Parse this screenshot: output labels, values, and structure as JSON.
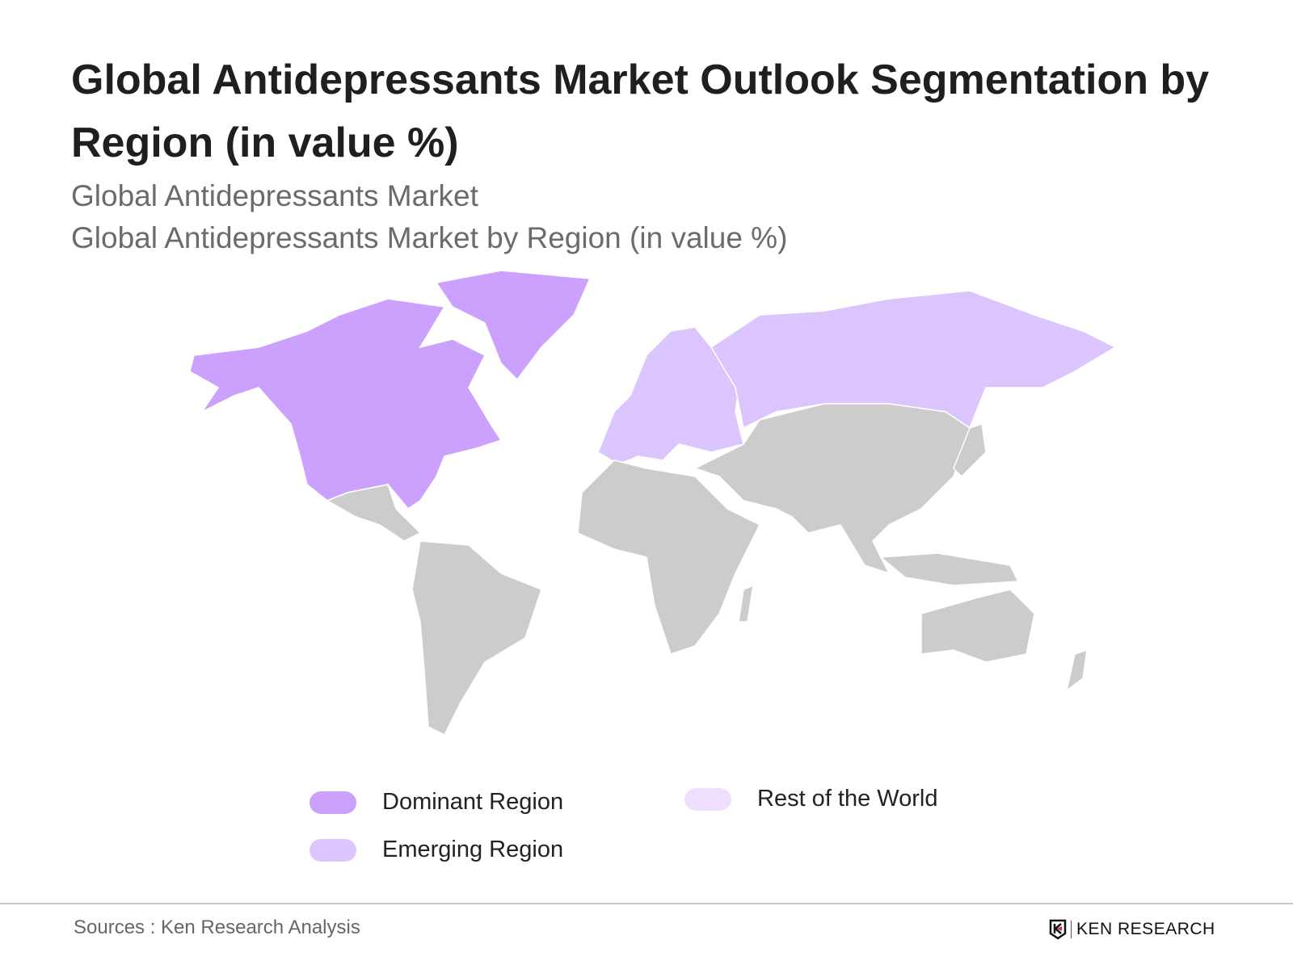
{
  "title": "Global Antidepressants Market Outlook Segmentation by Region (in value %)",
  "subtitle_1": "Global Antidepressants Market",
  "subtitle_2": "Global Antidepressants Market by Region (in value %)",
  "chart_data": {
    "type": "choropleth-map",
    "regions": [
      {
        "name": "Dominant Region",
        "color": "#cba1fd",
        "areas": [
          "North America (USA, Canada, Alaska, Greenland)"
        ]
      },
      {
        "name": "Emerging Region",
        "color": "#dcc5fe",
        "areas": [
          "Europe",
          "Russia"
        ]
      },
      {
        "name": "Rest of the World",
        "color": "#efdffe",
        "areas": []
      }
    ],
    "other_land_color": "#cccccc"
  },
  "legend": {
    "dominant": "Dominant Region",
    "emerging": "Emerging Region",
    "rest": "Rest of the World"
  },
  "footer": {
    "source": "Sources : Ken Research Analysis",
    "logo": "KEN RESEARCH"
  }
}
